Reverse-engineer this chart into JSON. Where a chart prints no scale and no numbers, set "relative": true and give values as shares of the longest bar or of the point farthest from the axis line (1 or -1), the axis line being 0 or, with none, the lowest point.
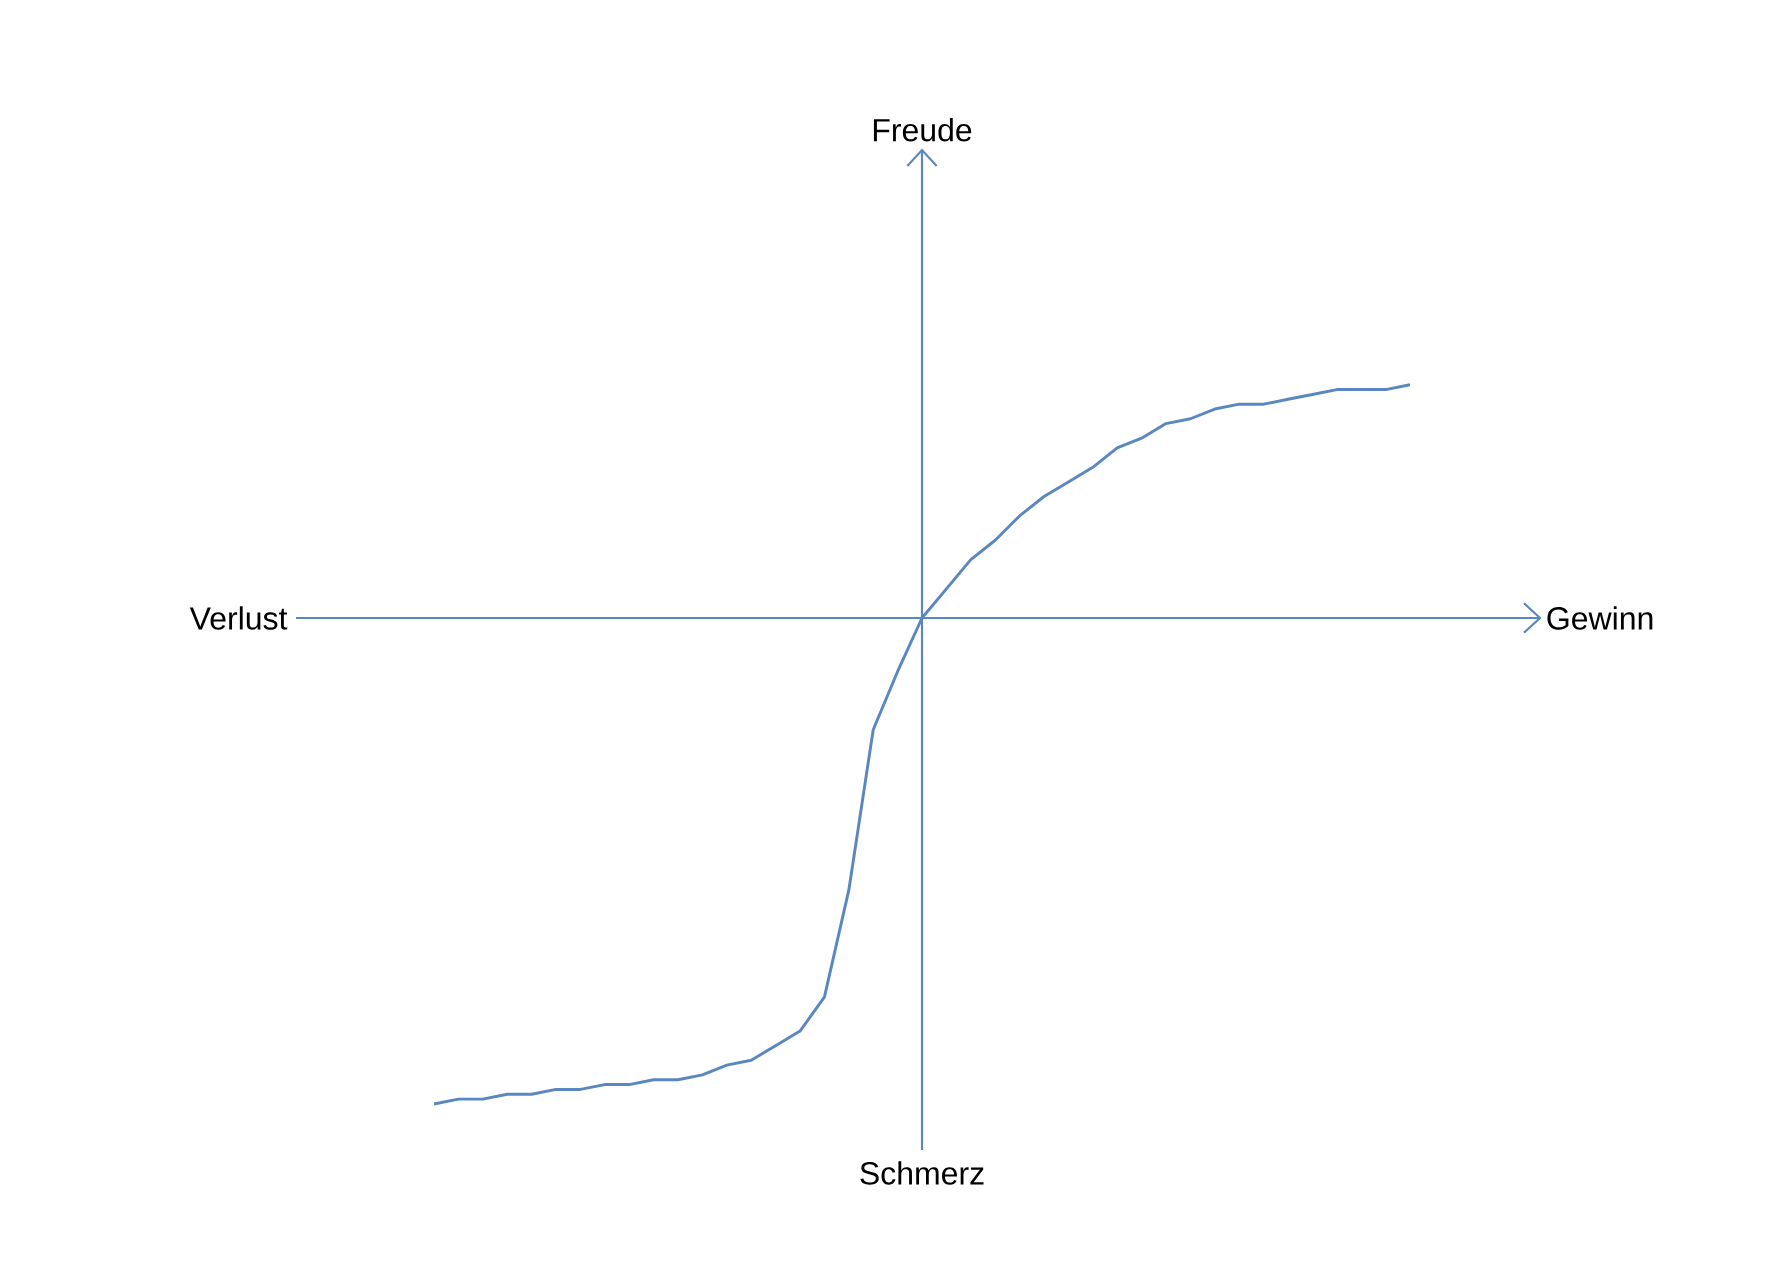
{
  "chart_data": {
    "type": "line",
    "relative": true,
    "ref_lines": [
      {
        "axis": "y",
        "value": 0
      }
    ],
    "annotations": [
      "Freude",
      "Verlust",
      "Gewinn",
      "Schmerz"
    ],
    "categories": [
      null,
      null,
      null,
      null,
      null,
      null,
      null,
      null,
      null,
      null,
      null,
      null,
      null,
      null,
      null,
      null,
      null,
      null,
      null,
      null,
      null,
      null,
      null,
      null,
      null,
      null,
      null,
      null,
      null,
      null,
      null,
      null,
      null,
      null,
      null,
      null,
      null,
      null,
      null,
      null,
      null
    ],
    "series": [
      {
        "color": "#5b87c0",
        "values": [
          -1.0,
          -0.99,
          -0.99,
          -0.98,
          -0.98,
          -0.97,
          -0.97,
          -0.96,
          -0.96,
          -0.95,
          -0.95,
          -0.94,
          -0.92,
          -0.91,
          -0.88,
          -0.85,
          -0.78,
          -0.56,
          -0.23,
          -0.11,
          0,
          0.06,
          0.12,
          0.16,
          0.21,
          0.25,
          0.28,
          0.31,
          0.35,
          0.37,
          0.4,
          0.41,
          0.43,
          0.44,
          0.44,
          0.45,
          0.46,
          0.47,
          0.47,
          0.47,
          0.48
        ]
      }
    ]
  }
}
